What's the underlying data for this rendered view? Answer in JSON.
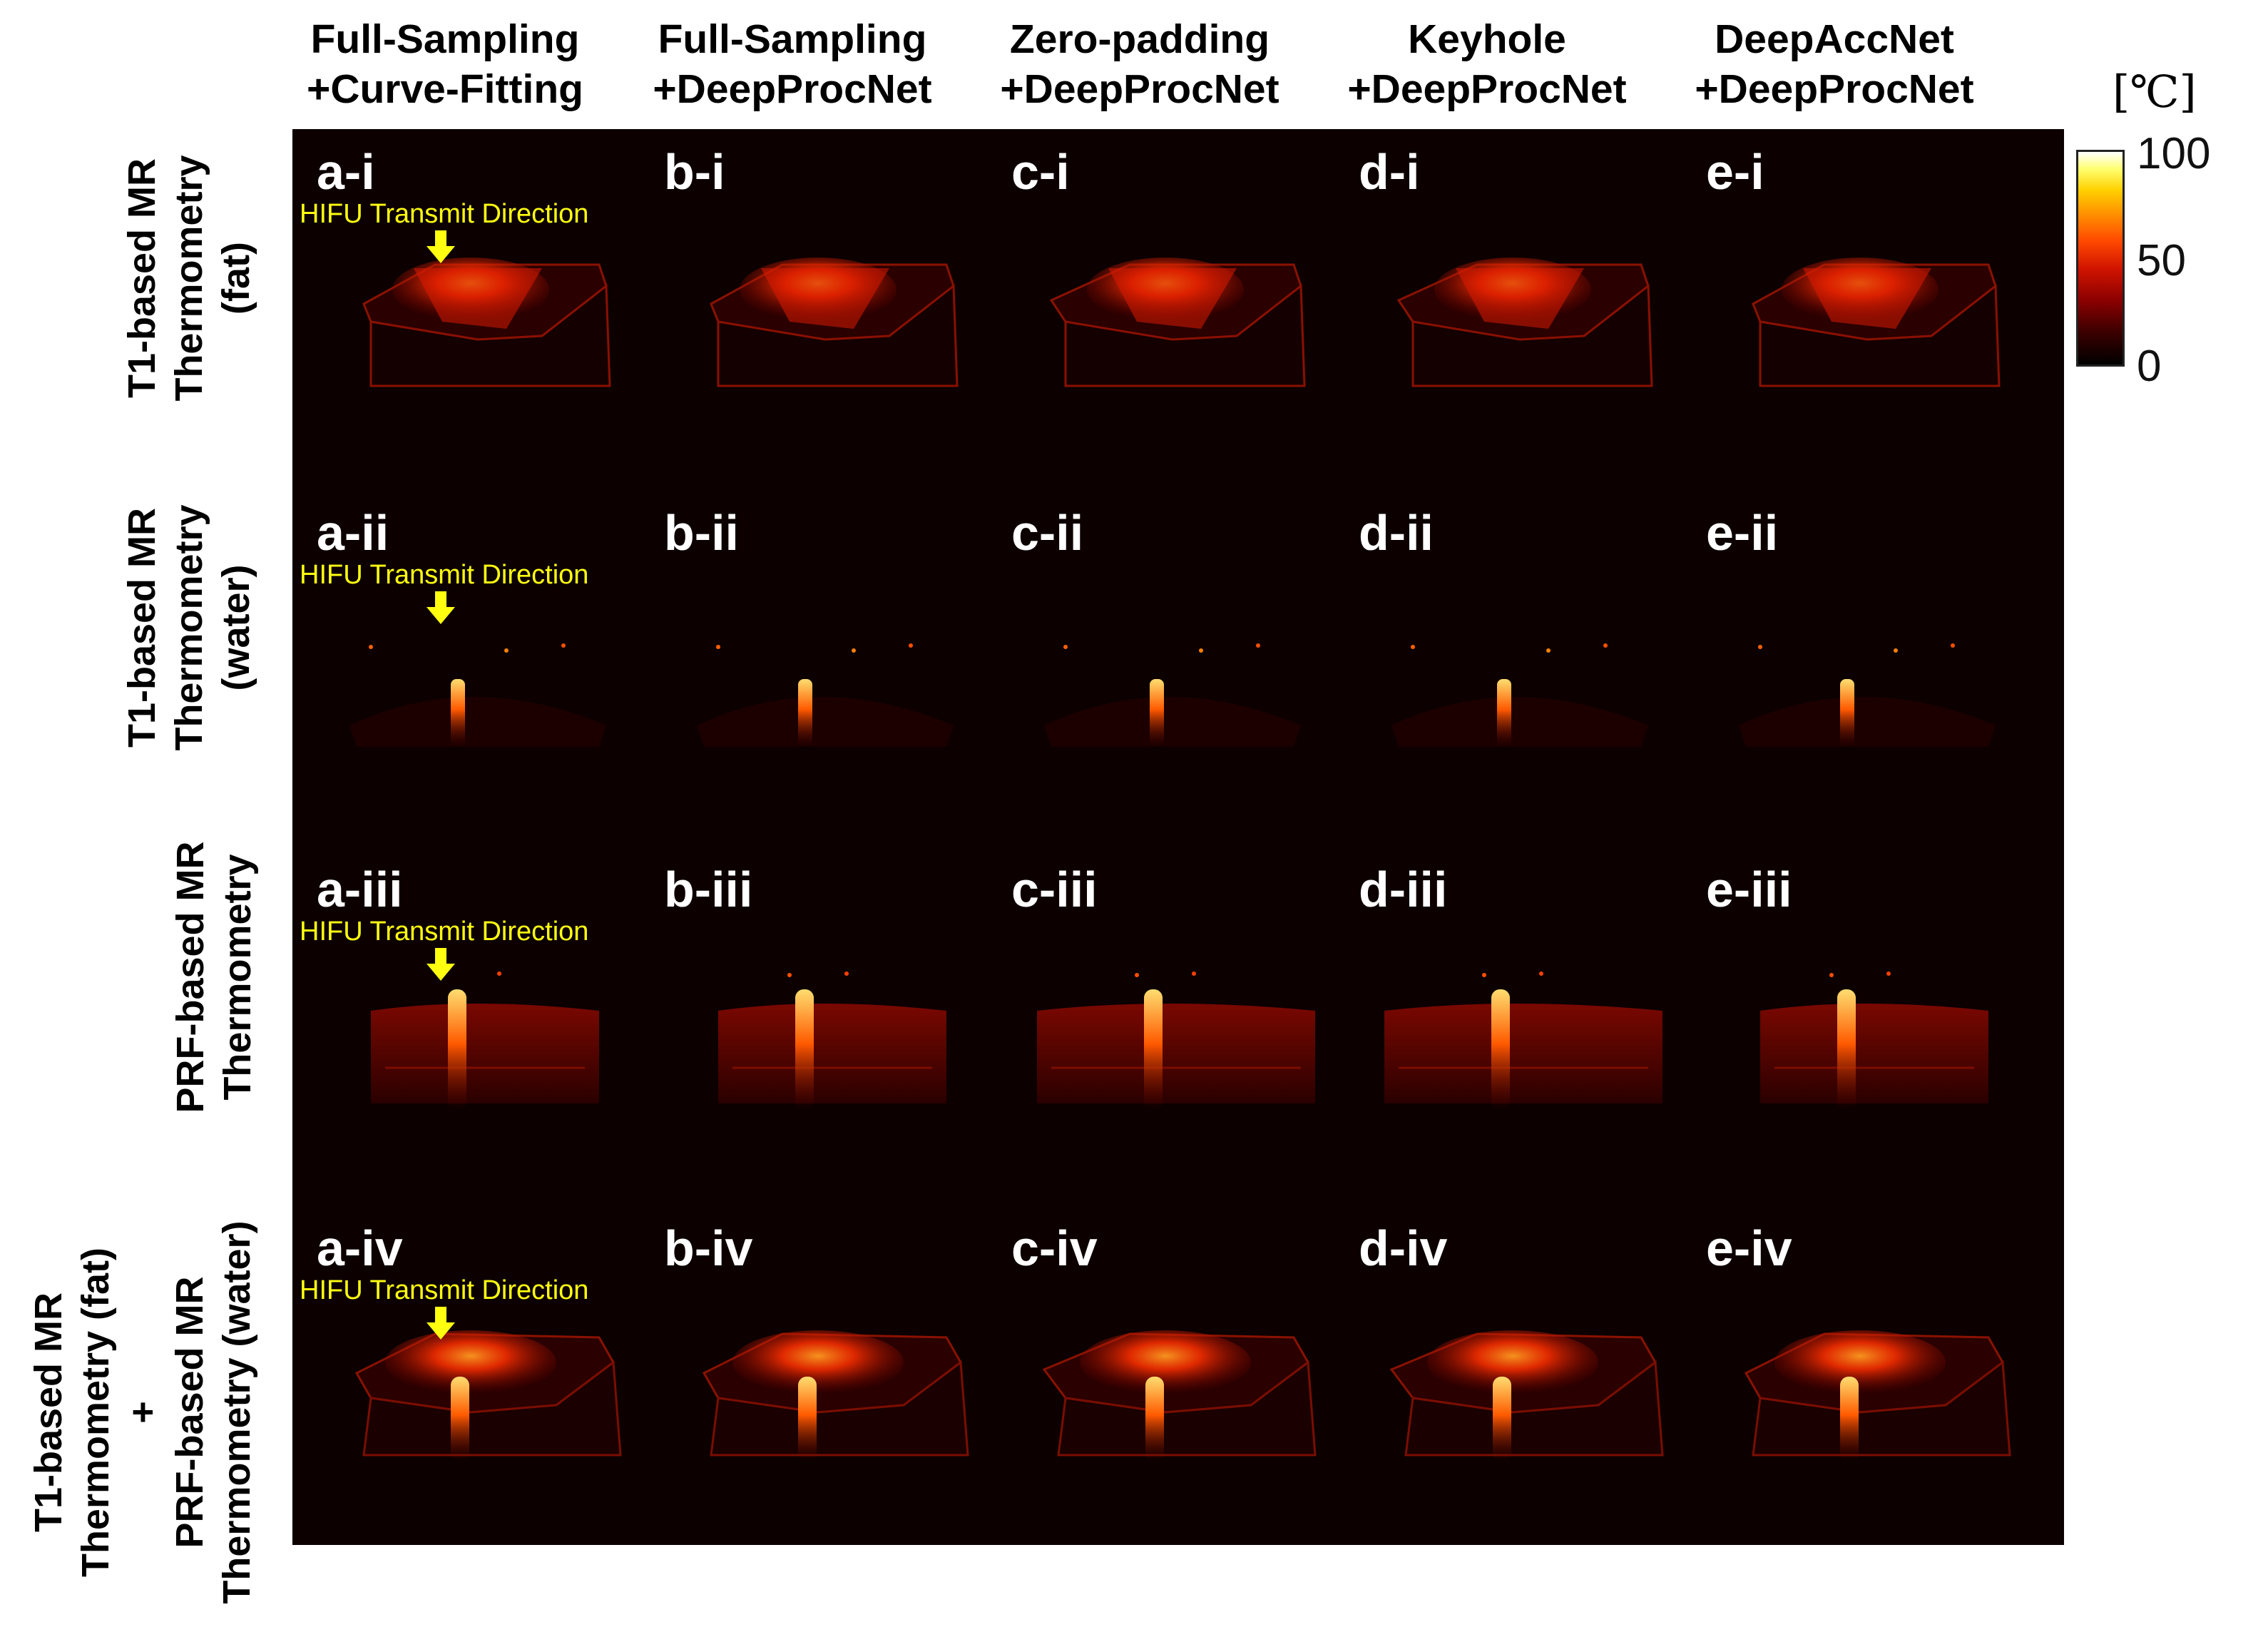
{
  "columns": [
    {
      "line1": "Full-Sampling",
      "line2": "+Curve-Fitting"
    },
    {
      "line1": "Full-Sampling",
      "line2": "+DeepProcNet"
    },
    {
      "line1": "Zero-padding",
      "line2": "+DeepProcNet"
    },
    {
      "line1": "Keyhole",
      "line2": "+DeepProcNet"
    },
    {
      "line1": "DeepAccNet",
      "line2": "+DeepProcNet"
    }
  ],
  "rows": [
    {
      "lines": [
        "T1-based MR",
        "Thermometry",
        "(fat)"
      ]
    },
    {
      "lines": [
        "T1-based MR",
        "Thermometry",
        "(water)"
      ]
    },
    {
      "lines": [
        "PRF-based MR",
        "Thermometry"
      ]
    },
    {
      "lines": [
        "T1-based MR",
        "Thermometry (fat)",
        "+",
        "PRF-based MR",
        "Thermometry (water)"
      ]
    }
  ],
  "panels": [
    [
      "a-i",
      "b-i",
      "c-i",
      "d-i",
      "e-i"
    ],
    [
      "a-ii",
      "b-ii",
      "c-ii",
      "d-ii",
      "e-ii"
    ],
    [
      "a-iii",
      "b-iii",
      "c-iii",
      "d-iii",
      "e-iii"
    ],
    [
      "a-iv",
      "b-iv",
      "c-iv",
      "d-iv",
      "e-iv"
    ]
  ],
  "hifu_label": "HIFU Transmit Direction",
  "colorbar": {
    "title": "[℃]",
    "ticks": [
      "100",
      "50",
      "0"
    ],
    "colors": {
      "low": "#000000",
      "mid": "#ff2a00",
      "high": "#ffffff"
    }
  },
  "colors": {
    "background": "#0c0000",
    "panel_label": "#ffffff",
    "annotation": "#ffff10"
  }
}
